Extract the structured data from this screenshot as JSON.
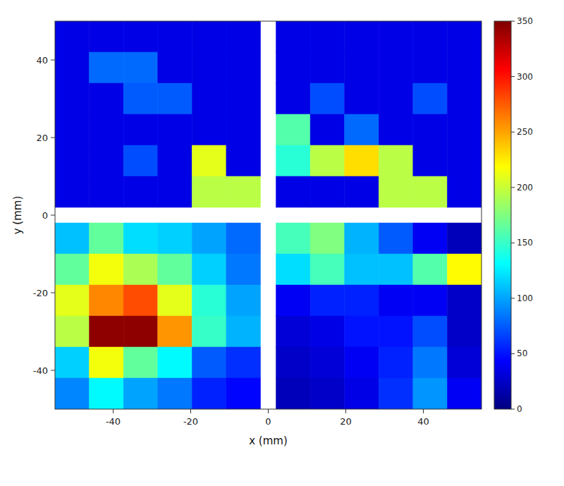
{
  "chart_data": {
    "type": "heatmap",
    "xlabel": "x (mm)",
    "ylabel": "y (mm)",
    "xlim": [
      -55,
      55
    ],
    "ylim": [
      -50,
      50
    ],
    "xticks": [
      -40,
      -20,
      0,
      20,
      40
    ],
    "yticks": [
      -40,
      -20,
      0,
      20,
      40
    ],
    "colorbar": {
      "range": [
        0,
        350
      ],
      "ticks": [
        0,
        50,
        100,
        150,
        200,
        250,
        300,
        350
      ]
    },
    "quadrants": [
      {
        "x_range": [
          -55,
          -2
        ],
        "y_range": [
          2,
          50
        ],
        "cells": [
          [
            35,
            35,
            35,
            35,
            35,
            35
          ],
          [
            35,
            80,
            80,
            35,
            35,
            35
          ],
          [
            35,
            35,
            75,
            75,
            35,
            35
          ],
          [
            35,
            35,
            35,
            35,
            35,
            35
          ],
          [
            35,
            35,
            70,
            35,
            210,
            35
          ],
          [
            35,
            35,
            35,
            35,
            195,
            195
          ]
        ]
      },
      {
        "x_range": [
          2,
          55
        ],
        "y_range": [
          2,
          50
        ],
        "cells": [
          [
            35,
            35,
            35,
            35,
            35,
            35
          ],
          [
            35,
            35,
            35,
            35,
            35,
            35
          ],
          [
            35,
            70,
            35,
            35,
            70,
            35
          ],
          [
            160,
            35,
            80,
            35,
            35,
            35
          ],
          [
            145,
            195,
            230,
            195,
            35,
            35
          ],
          [
            35,
            35,
            35,
            195,
            195,
            35
          ]
        ]
      },
      {
        "x_range": [
          -55,
          -2
        ],
        "y_range": [
          -50,
          -2
        ],
        "cells": [
          [
            110,
            165,
            120,
            115,
            100,
            80
          ],
          [
            165,
            215,
            190,
            165,
            115,
            85
          ],
          [
            210,
            260,
            280,
            210,
            145,
            100
          ],
          [
            195,
            345,
            345,
            255,
            150,
            105
          ],
          [
            115,
            215,
            165,
            130,
            75,
            60
          ],
          [
            90,
            130,
            100,
            85,
            55,
            45
          ]
        ]
      },
      {
        "x_range": [
          2,
          55
        ],
        "y_range": [
          -50,
          -2
        ],
        "cells": [
          [
            155,
            175,
            105,
            75,
            40,
            20
          ],
          [
            120,
            155,
            110,
            110,
            160,
            220
          ],
          [
            40,
            55,
            55,
            40,
            40,
            25
          ],
          [
            30,
            35,
            50,
            50,
            70,
            25
          ],
          [
            25,
            30,
            40,
            55,
            85,
            30
          ],
          [
            20,
            25,
            35,
            60,
            95,
            40
          ]
        ]
      }
    ]
  }
}
